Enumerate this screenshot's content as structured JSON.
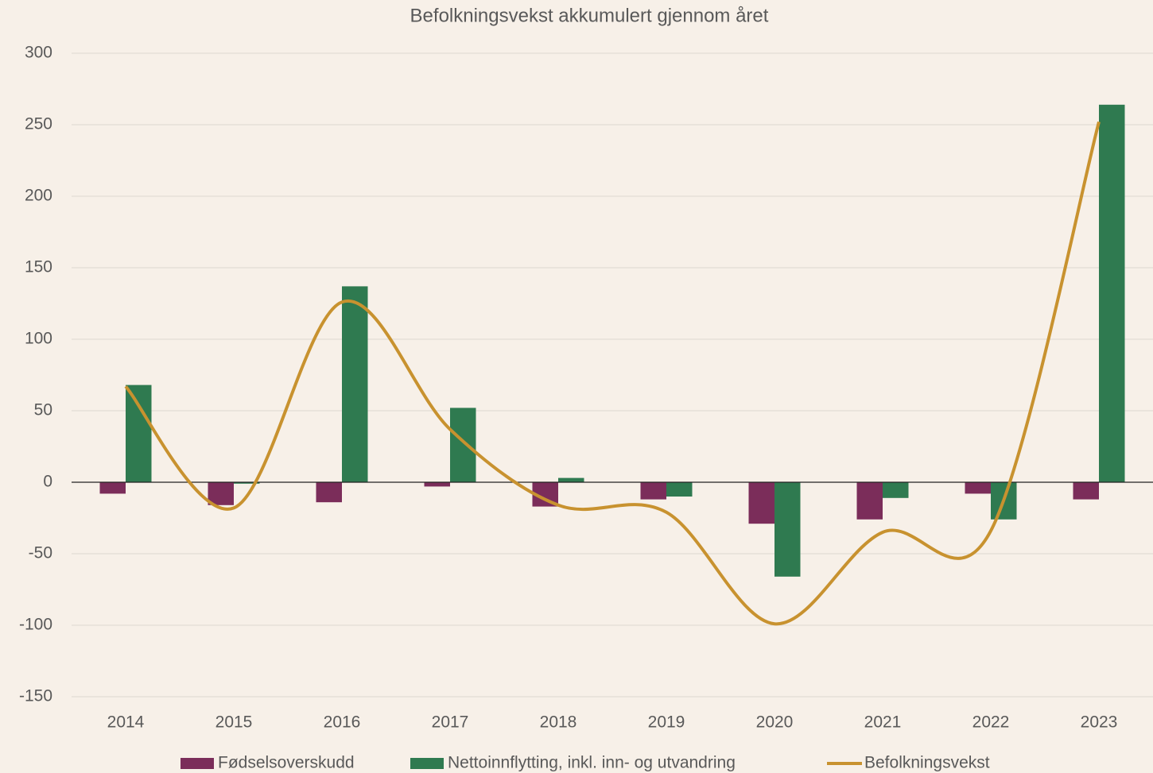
{
  "chart_data": {
    "type": "bar-line",
    "title": "Befolkningsvekst akkumulert gjennom året",
    "categories": [
      "2014",
      "2015",
      "2016",
      "2017",
      "2018",
      "2019",
      "2020",
      "2021",
      "2022",
      "2023"
    ],
    "series": [
      {
        "name": "Fødselsoverskudd",
        "type": "bar",
        "color": "#7b2d5a",
        "values": [
          -8,
          -16,
          -14,
          -3,
          -17,
          -12,
          -29,
          -26,
          -8,
          -12
        ]
      },
      {
        "name": "Nettoinnflytting, inkl. inn- og utvandring",
        "type": "bar",
        "color": "#2f7a50",
        "values": [
          68,
          -1,
          137,
          52,
          3,
          -10,
          -66,
          -11,
          -26,
          264
        ]
      },
      {
        "name": "Befolkningsvekst",
        "type": "line",
        "color": "#c8922f",
        "values": [
          67,
          -18,
          126,
          37,
          -16,
          -21,
          -99,
          -35,
          -34,
          252
        ]
      }
    ],
    "ylim": [
      -150,
      300
    ],
    "yticks": [
      -150,
      -100,
      -50,
      0,
      50,
      100,
      150,
      200,
      250,
      300
    ],
    "grid": true
  }
}
